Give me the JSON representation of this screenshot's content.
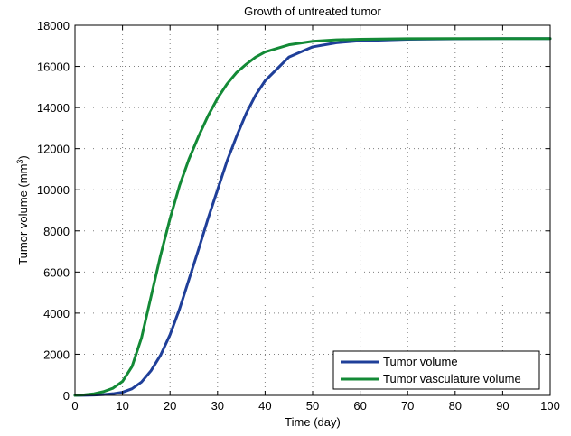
{
  "chart_data": {
    "type": "line",
    "title": "Growth of untreated tumor",
    "xlabel": "Time (day)",
    "ylabel_main": "Tumor volume (mm",
    "ylabel_sup": "3",
    "ylabel_close": ")",
    "xlim": [
      0,
      100
    ],
    "ylim": [
      0,
      18000
    ],
    "x_ticks": [
      "0",
      "10",
      "20",
      "30",
      "40",
      "50",
      "60",
      "70",
      "80",
      "90",
      "100"
    ],
    "y_ticks": [
      "0",
      "2000",
      "4000",
      "6000",
      "8000",
      "10000",
      "12000",
      "14000",
      "16000",
      "18000"
    ],
    "grid": true,
    "legend_position": "bottom-right",
    "x": [
      0,
      2,
      4,
      6,
      8,
      10,
      12,
      14,
      16,
      18,
      20,
      22,
      24,
      26,
      28,
      30,
      32,
      34,
      36,
      38,
      40,
      45,
      50,
      55,
      60,
      70,
      80,
      90,
      100
    ],
    "series": [
      {
        "name": "Tumor volume",
        "color": "#1f3f99",
        "values": [
          0,
          5,
          15,
          40,
          80,
          150,
          320,
          650,
          1200,
          1950,
          2950,
          4200,
          5650,
          7100,
          8600,
          10000,
          11400,
          12600,
          13700,
          14600,
          15300,
          16450,
          16950,
          17150,
          17250,
          17320,
          17340,
          17350,
          17350
        ]
      },
      {
        "name": "Tumor vasculature volume",
        "color": "#138a36",
        "values": [
          0,
          30,
          80,
          180,
          350,
          680,
          1400,
          2800,
          4800,
          6800,
          8600,
          10200,
          11500,
          12600,
          13600,
          14450,
          15150,
          15700,
          16100,
          16450,
          16700,
          17050,
          17220,
          17290,
          17320,
          17345,
          17350,
          17350,
          17350
        ]
      }
    ]
  }
}
